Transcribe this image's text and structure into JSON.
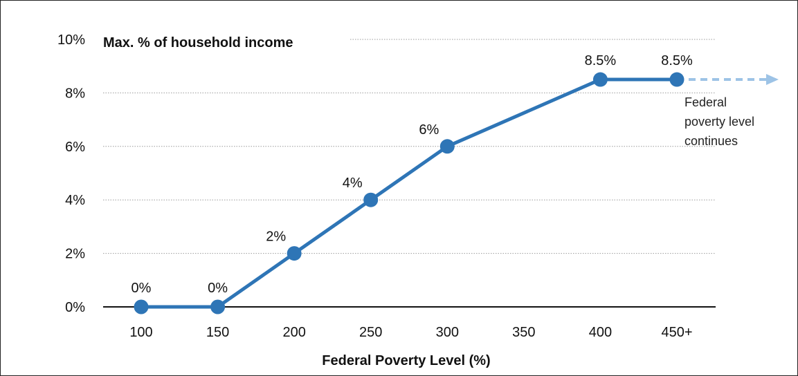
{
  "chart_data": {
    "type": "line",
    "title": "Max. % of household income",
    "xlabel": "Federal Poverty Level (%)",
    "ylabel": "",
    "categories": [
      "100",
      "150",
      "200",
      "250",
      "300",
      "350",
      "400",
      "450+"
    ],
    "x": [
      100,
      150,
      200,
      250,
      300,
      400,
      450
    ],
    "values": [
      0,
      0,
      2,
      4,
      6,
      8.5,
      8.5
    ],
    "data_labels": [
      "0%",
      "0%",
      "2%",
      "4%",
      "6%",
      "8.5%",
      "8.5%"
    ],
    "yticks": [
      "0%",
      "2%",
      "4%",
      "6%",
      "8%",
      "10%"
    ],
    "ylim": [
      0,
      10
    ],
    "xlim": [
      100,
      450
    ],
    "grid": true,
    "legend": "none",
    "continuation_note": [
      "Federal",
      "poverty level",
      "continues"
    ],
    "colors": {
      "line": "#2e75b6",
      "continuation": "#9dc3e6",
      "grid": "#9a9a9a",
      "axis": "#111111"
    }
  }
}
